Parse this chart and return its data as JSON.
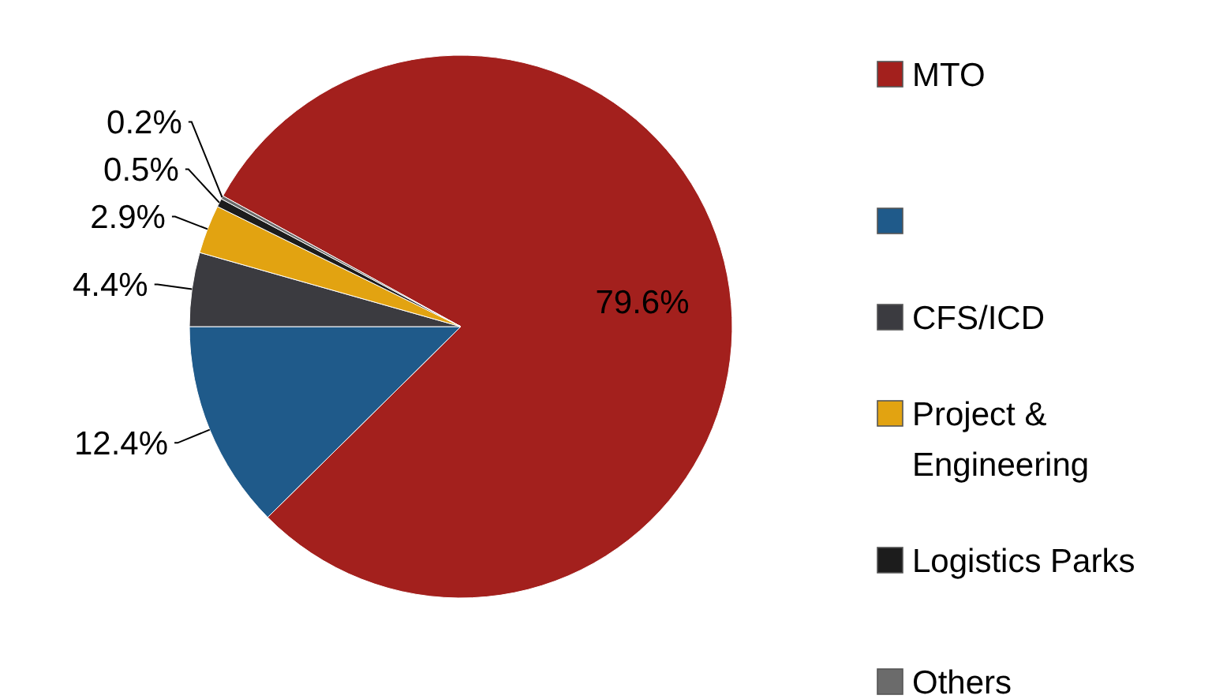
{
  "chart_data": {
    "type": "pie",
    "categories": [
      "MTO",
      null,
      "CFS/ICD",
      "Project & Engineering",
      "Logistics Parks",
      "Others"
    ],
    "values": [
      79.6,
      12.4,
      4.4,
      2.9,
      0.5,
      0.2
    ],
    "colors": [
      "#a3201d",
      "#1f5a8a",
      "#3b3b40",
      "#e2a311",
      "#1c1c1c",
      "#6b6b6b"
    ],
    "value_labels": [
      "79.6%",
      "12.4%",
      "4.4%",
      "2.9%",
      "0.5%",
      "0.2%"
    ],
    "legend": "right"
  }
}
